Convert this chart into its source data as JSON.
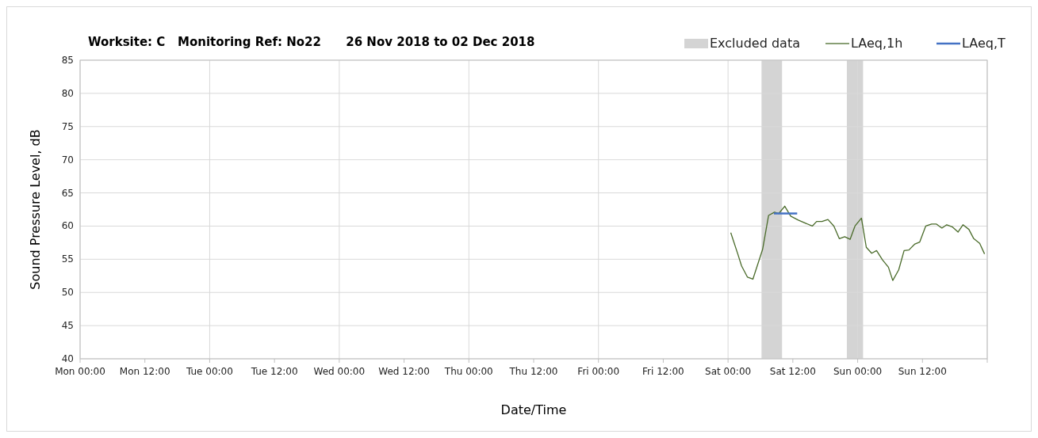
{
  "chart_data": {
    "type": "line",
    "title": "Worksite: C   Monitoring Ref: No22      26 Nov 2018 to 02 Dec 2018",
    "xlabel": "Date/Time",
    "ylabel": "Sound Pressure Level, dB",
    "xlim": [
      "2018-11-26T00:00",
      "2018-12-03T00:00"
    ],
    "xticks": [
      {
        "value": "2018-11-26T00:00",
        "label": "Mon 00:00"
      },
      {
        "value": "2018-11-26T12:00",
        "label": "Mon 12:00"
      },
      {
        "value": "2018-11-27T00:00",
        "label": "Tue 00:00"
      },
      {
        "value": "2018-11-27T12:00",
        "label": "Tue 12:00"
      },
      {
        "value": "2018-11-28T00:00",
        "label": "Wed 00:00"
      },
      {
        "value": "2018-11-28T12:00",
        "label": "Wed 12:00"
      },
      {
        "value": "2018-11-29T00:00",
        "label": "Thu 00:00"
      },
      {
        "value": "2018-11-29T12:00",
        "label": "Thu 12:00"
      },
      {
        "value": "2018-11-30T00:00",
        "label": "Fri 00:00"
      },
      {
        "value": "2018-11-30T12:00",
        "label": "Fri 12:00"
      },
      {
        "value": "2018-12-01T00:00",
        "label": "Sat 00:00"
      },
      {
        "value": "2018-12-01T12:00",
        "label": "Sat 12:00"
      },
      {
        "value": "2018-12-02T00:00",
        "label": "Sun 00:00"
      },
      {
        "value": "2018-12-02T12:00",
        "label": "Sun 12:00"
      },
      {
        "value": "2018-12-03T00:00",
        "label": null
      }
    ],
    "ylim": [
      40,
      85
    ],
    "yticks": [
      40,
      45,
      50,
      55,
      60,
      65,
      70,
      75,
      80,
      85
    ],
    "grid": true,
    "legend": "top right",
    "bands": [
      {
        "axis": "x",
        "from": "2018-12-01T06:12",
        "to": "2018-12-01T10:00",
        "label": "Excluded data",
        "color": "#d4d4d4"
      },
      {
        "axis": "x",
        "from": "2018-12-01T22:00",
        "to": "2018-12-02T01:00",
        "color": "#d4d4d4"
      }
    ],
    "series": [
      {
        "name": "LAeq,1h",
        "color": "#4a6b2a",
        "x": [
          "2018-12-01T00:30",
          "2018-12-01T01:48",
          "2018-12-01T02:30",
          "2018-12-01T03:36",
          "2018-12-01T04:36",
          "2018-12-01T06:24",
          "2018-12-01T07:30",
          "2018-12-01T08:36",
          "2018-12-01T09:24",
          "2018-12-01T10:30",
          "2018-12-01T11:36",
          "2018-12-01T13:00",
          "2018-12-01T15:36",
          "2018-12-01T16:24",
          "2018-12-01T17:24",
          "2018-12-01T18:30",
          "2018-12-01T19:36",
          "2018-12-01T20:36",
          "2018-12-01T21:36",
          "2018-12-01T22:36",
          "2018-12-01T23:30",
          "2018-12-02T00:42",
          "2018-12-02T01:36",
          "2018-12-02T02:36",
          "2018-12-02T03:30",
          "2018-12-02T04:36",
          "2018-12-02T05:42",
          "2018-12-02T06:30",
          "2018-12-02T07:36",
          "2018-12-02T08:36",
          "2018-12-02T09:30",
          "2018-12-02T10:36",
          "2018-12-02T11:30",
          "2018-12-02T12:36",
          "2018-12-02T13:42",
          "2018-12-02T14:36",
          "2018-12-02T15:36",
          "2018-12-02T16:30",
          "2018-12-02T17:30",
          "2018-12-02T18:36",
          "2018-12-02T19:30",
          "2018-12-02T20:36",
          "2018-12-02T21:30",
          "2018-12-02T22:36",
          "2018-12-02T23:30"
        ],
        "values": [
          59,
          55.8,
          54,
          52.3,
          52,
          56.5,
          61.6,
          62.1,
          61.9,
          63,
          61.5,
          60.9,
          60,
          60.7,
          60.7,
          61,
          60,
          58.1,
          58.4,
          58,
          60,
          61.2,
          56.8,
          55.9,
          56.3,
          54.9,
          53.8,
          51.8,
          53.4,
          56.3,
          56.4,
          57.3,
          57.6,
          60,
          60.3,
          60.3,
          59.7,
          60.2,
          59.9,
          59.1,
          60.2,
          59.5,
          58.1,
          57.4,
          55.8
        ]
      },
      {
        "name": "LAeq,T",
        "color": "#4472c4",
        "x": [
          "2018-12-01T08:30",
          "2018-12-01T12:48"
        ],
        "values": [
          61.9,
          61.9
        ]
      }
    ]
  }
}
